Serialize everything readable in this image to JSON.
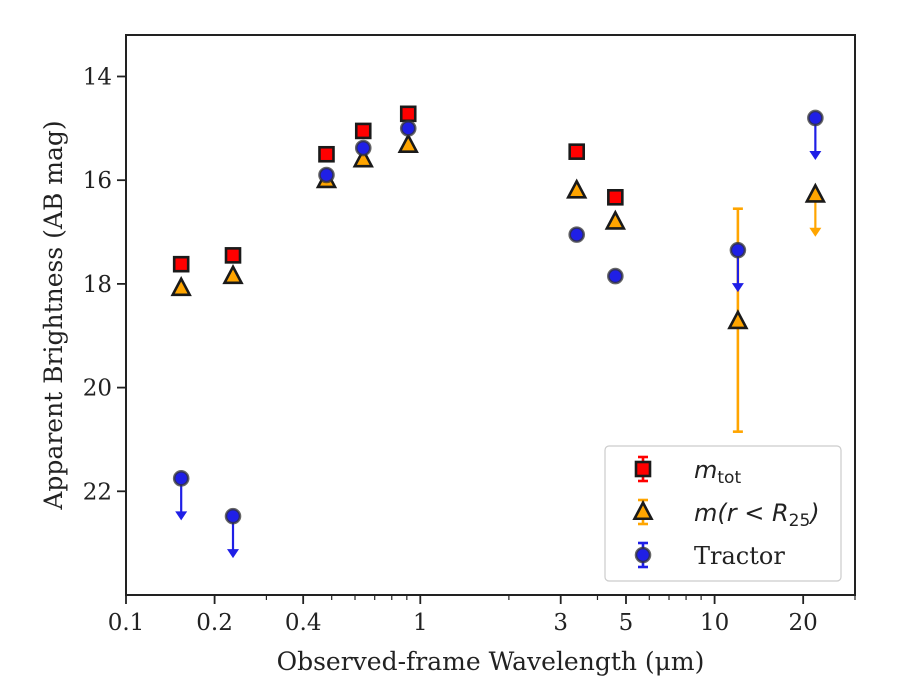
{
  "colors": {
    "mtot": "#ff0000",
    "mr25": "#ffa500",
    "tractor": "#1f1fe6",
    "axes": "#222222"
  },
  "chart_data": {
    "type": "scatter",
    "xlabel": "Observed-frame Wavelength (μm)",
    "ylabel": "Apparent Brightness (AB mag)",
    "xscale": "log",
    "xlim": [
      0.1,
      30
    ],
    "ylim": [
      24.0,
      13.2
    ],
    "y_inverted": true,
    "xticks": [
      {
        "value": 0.1,
        "label": "0.1"
      },
      {
        "value": 0.2,
        "label": "0.2"
      },
      {
        "value": 0.4,
        "label": "0.4"
      },
      {
        "value": 1,
        "label": "1"
      },
      {
        "value": 3,
        "label": "3"
      },
      {
        "value": 5,
        "label": "5"
      },
      {
        "value": 10,
        "label": "10"
      },
      {
        "value": 20,
        "label": "20"
      }
    ],
    "xminor": [
      0.3,
      0.5,
      0.6,
      0.7,
      0.8,
      0.9,
      2,
      4,
      6,
      7,
      8,
      9,
      30
    ],
    "yticks": [
      {
        "value": 14,
        "label": "14"
      },
      {
        "value": 16,
        "label": "16"
      },
      {
        "value": 18,
        "label": "18"
      },
      {
        "value": 20,
        "label": "20"
      },
      {
        "value": 22,
        "label": "22"
      }
    ],
    "grid": false,
    "legend_position": "lower-right",
    "legend": [
      {
        "key": "mtot",
        "label_base": "m",
        "label_sub": "tot",
        "marker": "square"
      },
      {
        "key": "mr25",
        "label_base": "m(r < R",
        "label_sub": "25",
        "label_tail": ")",
        "marker": "triangle"
      },
      {
        "key": "tractor",
        "label_base": "Tractor",
        "label_sub": "",
        "marker": "circle"
      }
    ],
    "series": [
      {
        "key": "mtot",
        "marker": "square",
        "points": [
          {
            "x": 0.154,
            "y": 17.62
          },
          {
            "x": 0.231,
            "y": 17.45
          },
          {
            "x": 0.48,
            "y": 15.5
          },
          {
            "x": 0.64,
            "y": 15.05
          },
          {
            "x": 0.91,
            "y": 14.72
          },
          {
            "x": 3.4,
            "y": 15.45
          },
          {
            "x": 4.6,
            "y": 16.33
          }
        ]
      },
      {
        "key": "mr25",
        "marker": "triangle",
        "points": [
          {
            "x": 0.154,
            "y": 18.08
          },
          {
            "x": 0.231,
            "y": 17.85
          },
          {
            "x": 0.48,
            "y": 16.0
          },
          {
            "x": 0.64,
            "y": 15.6
          },
          {
            "x": 0.91,
            "y": 15.32
          },
          {
            "x": 3.4,
            "y": 16.2
          },
          {
            "x": 4.6,
            "y": 16.8
          },
          {
            "x": 12.0,
            "y": 18.72,
            "yerr": [
              16.55,
              20.85
            ]
          },
          {
            "x": 22.0,
            "y": 16.28,
            "upper_limit": true
          }
        ]
      },
      {
        "key": "tractor",
        "marker": "circle",
        "points": [
          {
            "x": 0.154,
            "y": 21.75,
            "upper_limit": true
          },
          {
            "x": 0.231,
            "y": 22.48,
            "upper_limit": true
          },
          {
            "x": 0.48,
            "y": 15.9
          },
          {
            "x": 0.64,
            "y": 15.38
          },
          {
            "x": 0.91,
            "y": 15.0
          },
          {
            "x": 3.4,
            "y": 17.05
          },
          {
            "x": 4.6,
            "y": 17.85
          },
          {
            "x": 12.0,
            "y": 17.35,
            "upper_limit": true
          },
          {
            "x": 22.0,
            "y": 14.8,
            "upper_limit": true
          }
        ]
      }
    ]
  }
}
